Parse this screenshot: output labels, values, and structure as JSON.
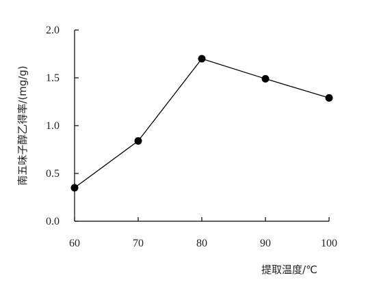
{
  "chart_data": {
    "type": "line",
    "title": "",
    "xlabel": "提取温度/℃",
    "ylabel": "南五味子醇乙得率/(mg/g)",
    "x": [
      60,
      70,
      80,
      90,
      100
    ],
    "series": [
      {
        "values": [
          0.35,
          0.84,
          1.7,
          1.49,
          1.29
        ]
      }
    ],
    "xlim": [
      60,
      100
    ],
    "ylim": [
      0.0,
      2.0
    ],
    "xticks": [
      "60",
      "70",
      "80",
      "90",
      "100"
    ],
    "yticks": [
      "0.0",
      "0.5",
      "1.0",
      "1.5",
      "2.0"
    ],
    "grid": false,
    "legend": "none",
    "colors": {
      "line": "#000000",
      "marker": "#000000",
      "axis": "#000000"
    }
  }
}
